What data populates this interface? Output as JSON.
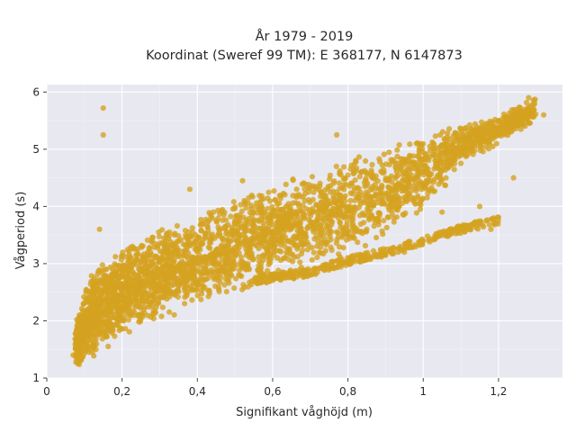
{
  "chart_data": {
    "type": "scatter",
    "title": "År 1979 - 2019",
    "subtitle": "Koordinat (Sweref 99 TM): E 368177, N 6147873",
    "xlabel": "Signifikant våghöjd (m)",
    "ylabel": "Vågperiod (s)",
    "xlim": [
      0,
      1.37
    ],
    "ylim": [
      1,
      6.13
    ],
    "x_ticks": [
      0,
      0.2,
      0.4,
      0.6,
      0.8,
      1,
      1.2
    ],
    "x_tick_labels": [
      "0",
      "0,2",
      "0,4",
      "0,6",
      "0,8",
      "1",
      "1,2"
    ],
    "y_ticks": [
      1,
      2,
      3,
      4,
      5,
      6
    ],
    "y_tick_labels": [
      "1",
      "2",
      "3",
      "4",
      "5",
      "6"
    ],
    "grid": true,
    "marker_color": "#d4a320",
    "background_color": "#e8e8f0",
    "main_band": {
      "lower_edge": [
        [
          0.08,
          1.2
        ],
        [
          0.15,
          1.45
        ],
        [
          0.2,
          1.7
        ],
        [
          0.3,
          1.95
        ],
        [
          0.4,
          2.2
        ],
        [
          0.5,
          2.45
        ],
        [
          0.6,
          2.7
        ],
        [
          0.7,
          2.9
        ],
        [
          0.8,
          3.1
        ],
        [
          0.9,
          3.4
        ],
        [
          1.0,
          3.9
        ],
        [
          1.1,
          4.7
        ],
        [
          1.2,
          5.1
        ],
        [
          1.3,
          5.5
        ]
      ],
      "upper_edge": [
        [
          0.08,
          2.0
        ],
        [
          0.12,
          2.9
        ],
        [
          0.2,
          3.3
        ],
        [
          0.3,
          3.6
        ],
        [
          0.4,
          3.9
        ],
        [
          0.5,
          4.2
        ],
        [
          0.6,
          4.4
        ],
        [
          0.7,
          4.65
        ],
        [
          0.8,
          4.9
        ],
        [
          0.9,
          5.1
        ],
        [
          1.0,
          5.3
        ],
        [
          1.1,
          5.45
        ],
        [
          1.2,
          5.6
        ],
        [
          1.3,
          5.9
        ]
      ]
    },
    "lower_branch": [
      [
        0.55,
        2.7
      ],
      [
        0.6,
        2.75
      ],
      [
        0.7,
        2.85
      ],
      [
        0.8,
        3.05
      ],
      [
        0.9,
        3.2
      ],
      [
        1.0,
        3.4
      ],
      [
        1.05,
        3.5
      ],
      [
        1.1,
        3.6
      ],
      [
        1.2,
        3.75
      ]
    ],
    "outliers": [
      [
        0.15,
        5.72
      ],
      [
        0.15,
        5.25
      ],
      [
        0.1,
        1.95
      ],
      [
        0.14,
        3.6
      ],
      [
        0.07,
        1.4
      ],
      [
        0.47,
        3.85
      ],
      [
        0.38,
        4.3
      ],
      [
        0.52,
        4.45
      ],
      [
        0.77,
        5.25
      ],
      [
        1.1,
        3.65
      ],
      [
        1.18,
        3.6
      ],
      [
        1.15,
        4.0
      ],
      [
        1.24,
        4.5
      ],
      [
        1.28,
        5.9
      ],
      [
        1.32,
        5.6
      ],
      [
        1.05,
        3.9
      ],
      [
        0.95,
        3.2
      ],
      [
        0.86,
        3.95
      ],
      [
        1.2,
        5.5
      ],
      [
        1.25,
        5.7
      ]
    ]
  }
}
